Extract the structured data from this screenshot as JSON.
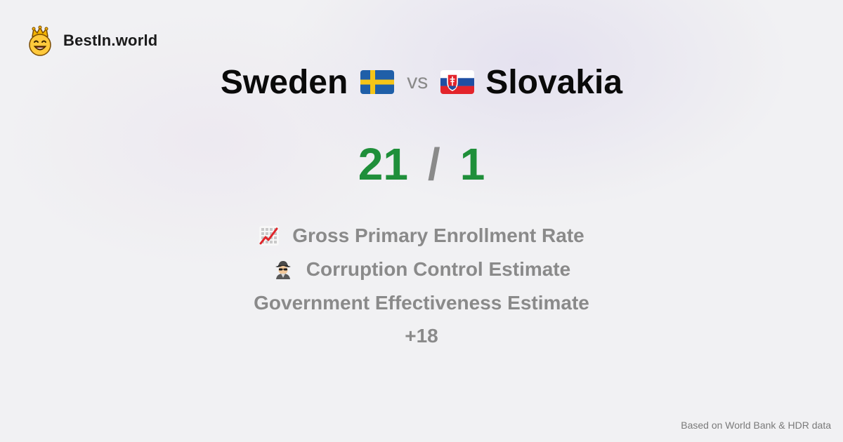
{
  "brand": {
    "name": "BestIn.world",
    "logo_icon": "crowned-smiley-icon"
  },
  "comparison": {
    "left_country": "Sweden",
    "left_flag": "sweden-flag-icon",
    "vs_label": "vs",
    "right_country": "Slovakia",
    "right_flag": "slovakia-flag-icon"
  },
  "score": {
    "left": "21",
    "separator": "/",
    "right": "1"
  },
  "metrics": [
    {
      "icon": "chart-increasing-icon",
      "label": "Gross Primary Enrollment Rate"
    },
    {
      "icon": "detective-icon",
      "label": "Corruption Control Estimate"
    },
    {
      "icon": "",
      "label": "Government Effectiveness Estimate"
    }
  ],
  "more_label": "+18",
  "footer": {
    "source": "Based on World Bank & HDR data"
  },
  "colors": {
    "win_green": "#1f8f3a",
    "muted_gray": "#8a8a8a",
    "background": "#f1f1f3"
  }
}
